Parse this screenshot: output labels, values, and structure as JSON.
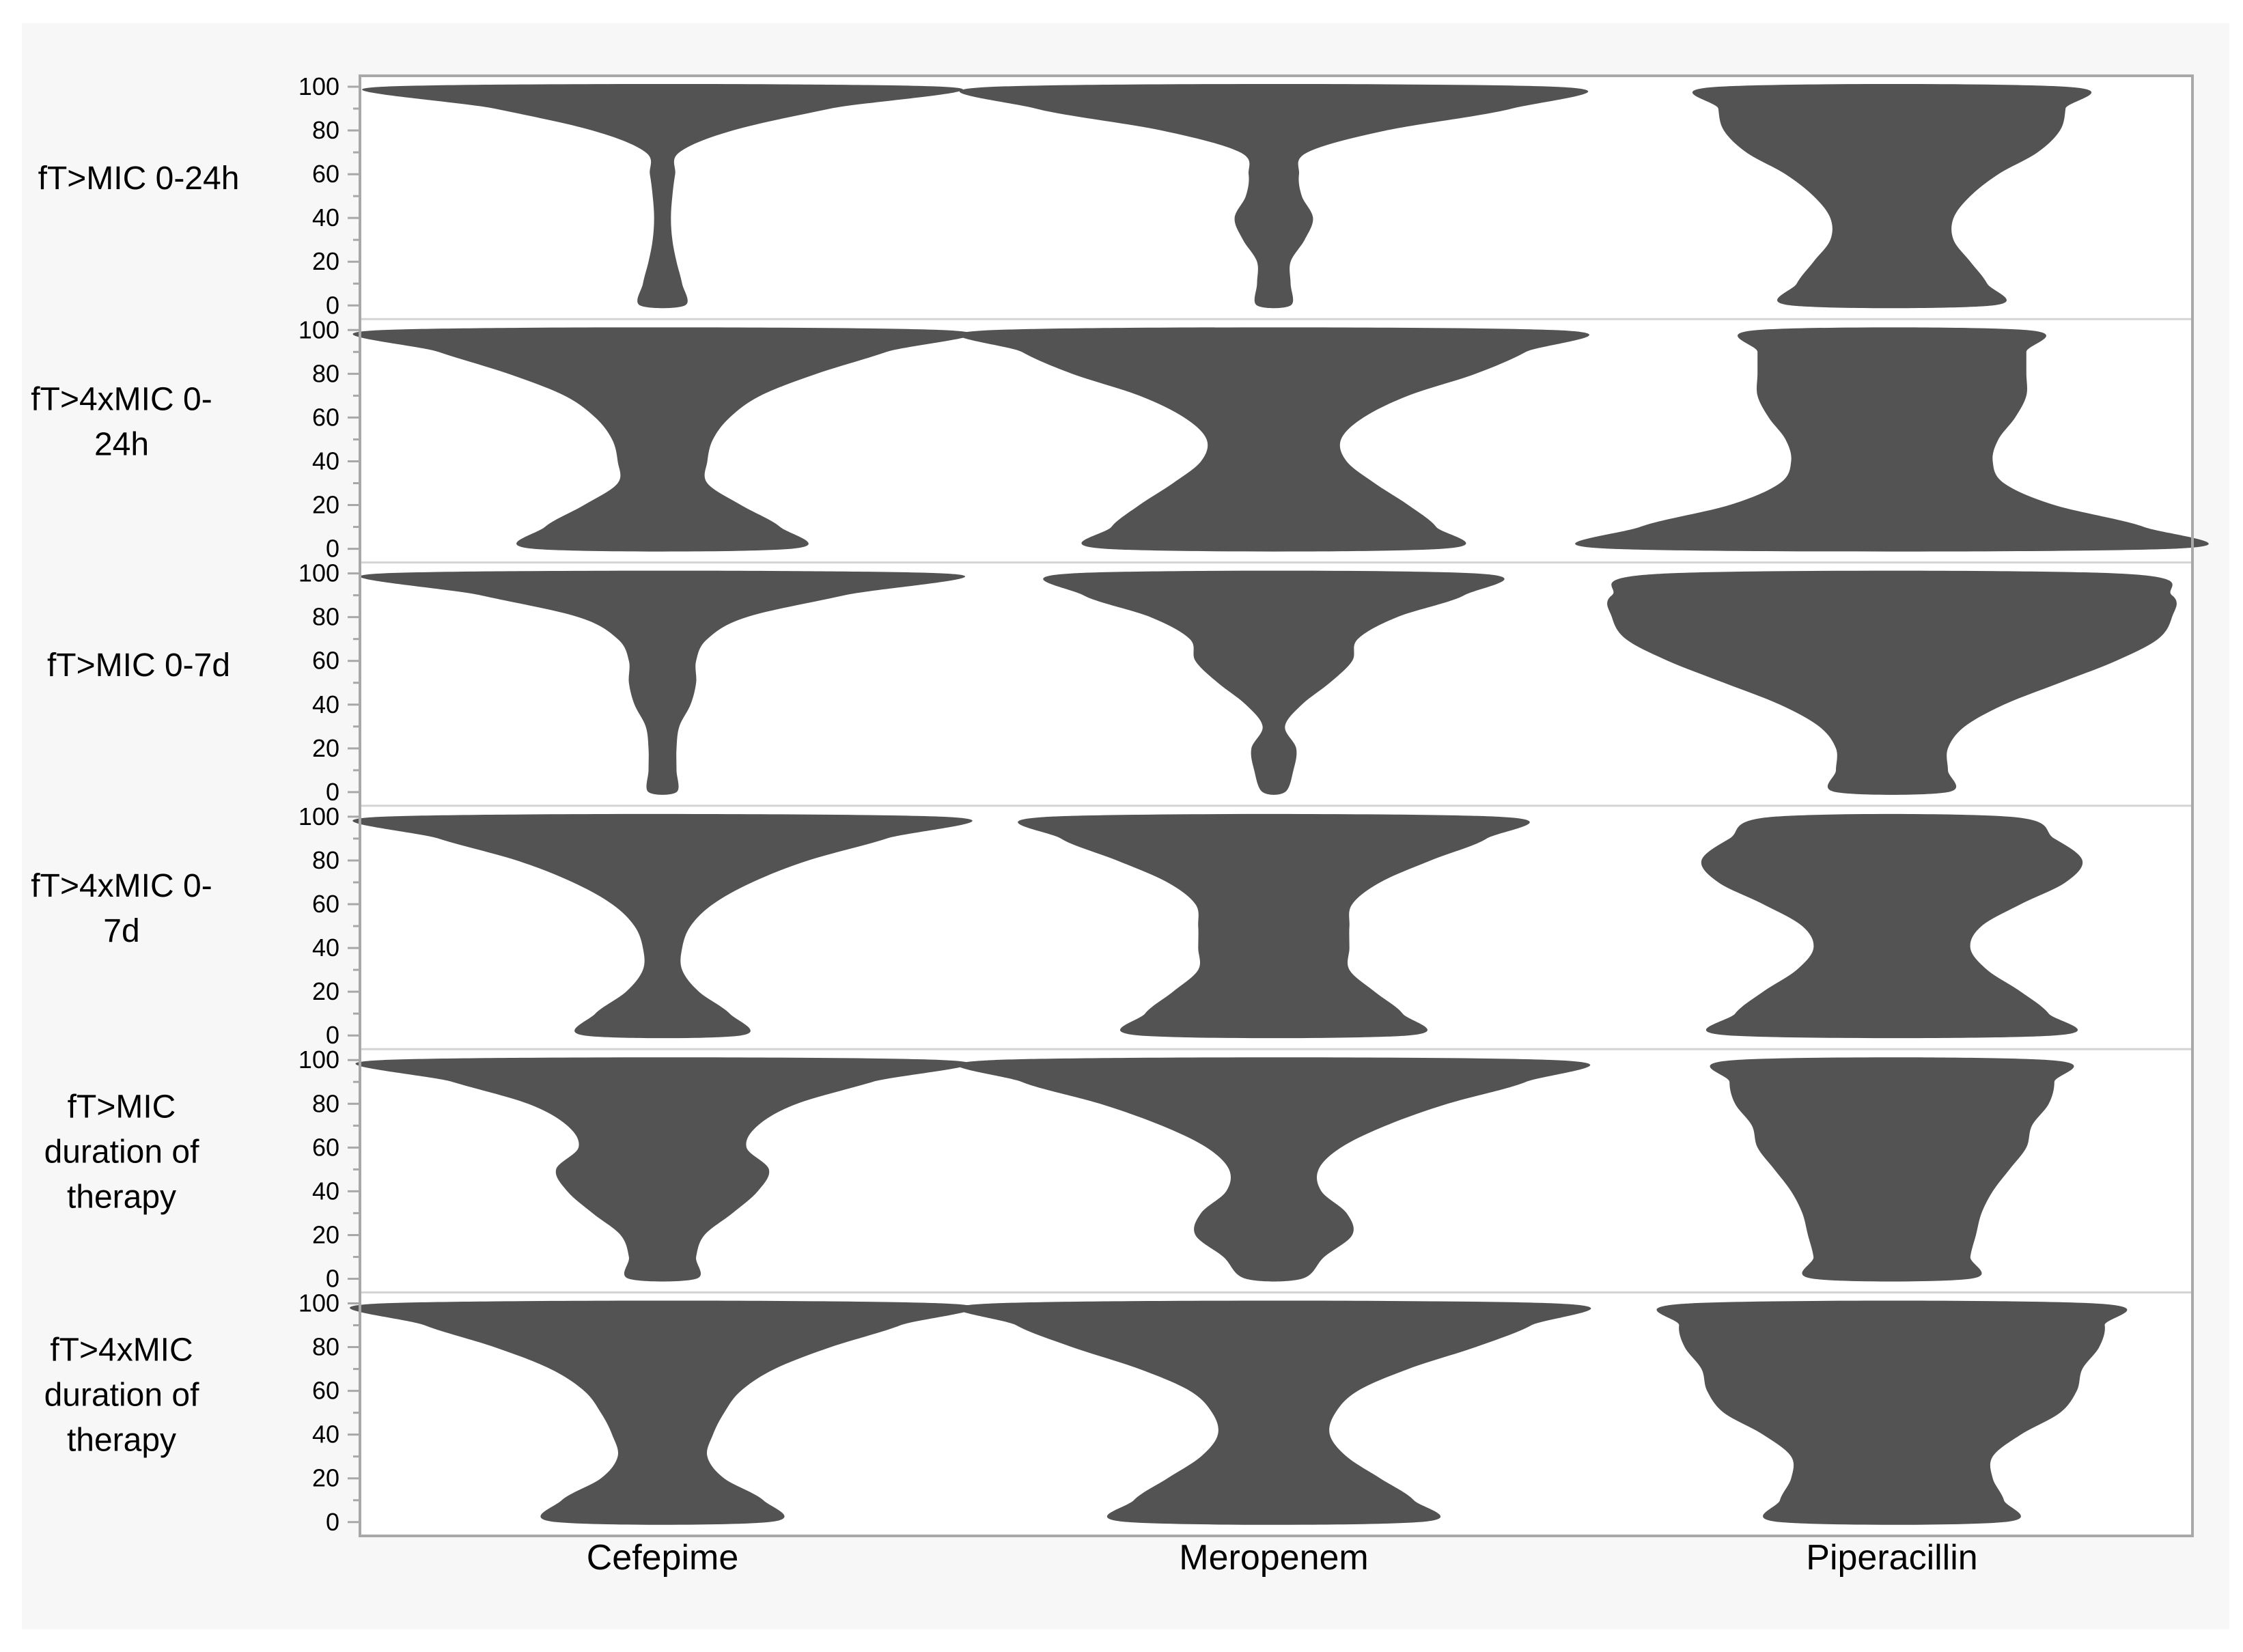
{
  "chart_data": {
    "type": "violin",
    "title": "",
    "xlabel": "",
    "ylabel": "",
    "ylim": [
      0,
      100
    ],
    "yticks": [
      0,
      20,
      40,
      60,
      80,
      100
    ],
    "columns": [
      "Cefepime",
      "Meropenem",
      "Piperacillin"
    ],
    "rows": [
      "fT>MIC 0-24h",
      "fT>4xMIC 0-24h",
      "fT>MIC 0-7d",
      "fT>4xMIC 0-7d",
      "fT>MIC duration of therapy",
      "fT>4xMIC duration of therapy"
    ],
    "density_y": [
      0,
      10,
      20,
      30,
      40,
      50,
      60,
      70,
      80,
      90,
      100
    ],
    "panels": [
      {
        "row": "fT>MIC 0-24h",
        "column": "Cefepime",
        "half_width": [
          0.08,
          0.07,
          0.05,
          0.035,
          0.03,
          0.035,
          0.045,
          0.06,
          0.25,
          0.6,
          1.0
        ]
      },
      {
        "row": "fT>MIC 0-24h",
        "column": "Meropenem",
        "half_width": [
          0.06,
          0.06,
          0.06,
          0.11,
          0.14,
          0.1,
          0.09,
          0.12,
          0.4,
          0.85,
          1.0
        ]
      },
      {
        "row": "fT>MIC 0-24h",
        "column": "Piperacillin",
        "half_width": [
          0.36,
          0.34,
          0.28,
          0.22,
          0.22,
          0.28,
          0.38,
          0.52,
          0.6,
          0.62,
          0.62
        ]
      },
      {
        "row": "fT>4xMIC 0-24h",
        "column": "Cefepime",
        "half_width": [
          0.46,
          0.42,
          0.28,
          0.16,
          0.16,
          0.18,
          0.24,
          0.35,
          0.55,
          0.8,
          1.0
        ]
      },
      {
        "row": "fT>4xMIC 0-24h",
        "column": "Meropenem",
        "half_width": [
          0.6,
          0.58,
          0.48,
          0.36,
          0.26,
          0.24,
          0.32,
          0.48,
          0.72,
          0.9,
          1.0
        ]
      },
      {
        "row": "fT>4xMIC 0-24h",
        "column": "Piperacillin",
        "half_width": [
          1.0,
          0.9,
          0.58,
          0.4,
          0.36,
          0.38,
          0.44,
          0.48,
          0.48,
          0.48,
          0.48
        ]
      },
      {
        "row": "fT>MIC 0-7d",
        "column": "Cefepime",
        "half_width": [
          0.05,
          0.05,
          0.05,
          0.06,
          0.1,
          0.12,
          0.12,
          0.16,
          0.3,
          0.65,
          1.0
        ]
      },
      {
        "row": "fT>MIC 0-7d",
        "column": "Meropenem",
        "half_width": [
          0.04,
          0.07,
          0.08,
          0.04,
          0.1,
          0.2,
          0.28,
          0.3,
          0.44,
          0.68,
          0.72
        ]
      },
      {
        "row": "fT>MIC 0-7d",
        "column": "Piperacillin",
        "half_width": [
          0.2,
          0.2,
          0.2,
          0.26,
          0.4,
          0.6,
          0.8,
          0.95,
          1.0,
          1.0,
          0.8
        ]
      },
      {
        "row": "fT>4xMIC 0-7d",
        "column": "Cefepime",
        "half_width": [
          0.28,
          0.24,
          0.13,
          0.07,
          0.07,
          0.1,
          0.18,
          0.32,
          0.52,
          0.8,
          1.0
        ]
      },
      {
        "row": "fT>4xMIC 0-7d",
        "column": "Meropenem",
        "half_width": [
          0.48,
          0.46,
          0.36,
          0.27,
          0.27,
          0.27,
          0.28,
          0.38,
          0.56,
          0.76,
          0.8
        ]
      },
      {
        "row": "fT>4xMIC 0-7d",
        "column": "Piperacillin",
        "half_width": [
          0.58,
          0.56,
          0.46,
          0.34,
          0.28,
          0.32,
          0.46,
          0.62,
          0.68,
          0.58,
          0.42
        ]
      },
      {
        "row": "fT>MIC duration of therapy",
        "column": "Cefepime",
        "half_width": [
          0.12,
          0.12,
          0.15,
          0.25,
          0.34,
          0.38,
          0.3,
          0.34,
          0.48,
          0.75,
          1.0
        ]
      },
      {
        "row": "fT>MIC duration of therapy",
        "column": "Meropenem",
        "half_width": [
          0.1,
          0.18,
          0.28,
          0.26,
          0.17,
          0.16,
          0.24,
          0.4,
          0.62,
          0.9,
          1.0
        ]
      },
      {
        "row": "fT>MIC duration of therapy",
        "column": "Piperacillin",
        "half_width": [
          0.28,
          0.28,
          0.3,
          0.32,
          0.36,
          0.42,
          0.48,
          0.5,
          0.56,
          0.58,
          0.56
        ]
      },
      {
        "row": "fT>4xMIC duration of therapy",
        "column": "Cefepime",
        "half_width": [
          0.38,
          0.36,
          0.22,
          0.16,
          0.18,
          0.22,
          0.28,
          0.4,
          0.6,
          0.85,
          1.0
        ]
      },
      {
        "row": "fT>4xMIC duration of therapy",
        "column": "Meropenem",
        "half_width": [
          0.52,
          0.5,
          0.38,
          0.26,
          0.2,
          0.22,
          0.3,
          0.48,
          0.72,
          0.92,
          1.0
        ]
      },
      {
        "row": "fT>4xMIC duration of therapy",
        "column": "Piperacillin",
        "half_width": [
          0.4,
          0.4,
          0.36,
          0.36,
          0.46,
          0.6,
          0.66,
          0.68,
          0.74,
          0.76,
          0.72
        ]
      }
    ],
    "grid": false,
    "legend": "none",
    "colors": {
      "violin_fill": "#535353",
      "frame": "#a8a8a8",
      "row_divider": "#d4d4d4",
      "outer_background": "#f7f7f7",
      "plot_background": "#ffffff",
      "text": "#000000"
    }
  }
}
